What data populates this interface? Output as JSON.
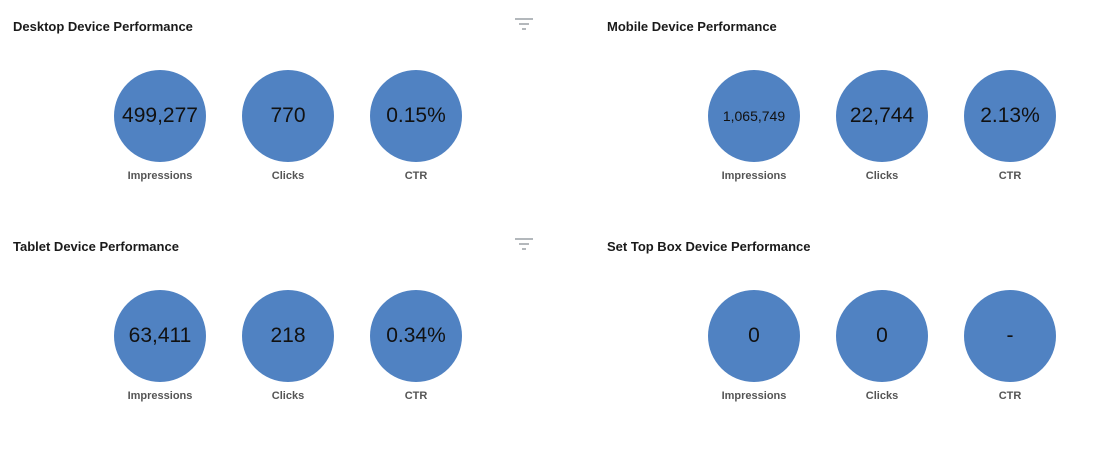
{
  "colors": {
    "bubble": "#5082c2",
    "title": "#1a1a1a",
    "label": "#555555",
    "icon": "#9aa0a6"
  },
  "icons": {
    "filter": "filter-icon"
  },
  "panels": {
    "desktop": {
      "title": "Desktop Device Performance",
      "impressions": {
        "value": "499,277",
        "label": "Impressions"
      },
      "clicks": {
        "value": "770",
        "label": "Clicks"
      },
      "ctr": {
        "value": "0.15%",
        "label": "CTR"
      }
    },
    "mobile": {
      "title": "Mobile Device Performance",
      "impressions": {
        "value": "1,065,749",
        "label": "Impressions"
      },
      "clicks": {
        "value": "22,744",
        "label": "Clicks"
      },
      "ctr": {
        "value": "2.13%",
        "label": "CTR"
      }
    },
    "tablet": {
      "title": "Tablet Device Performance",
      "impressions": {
        "value": "63,411",
        "label": "Impressions"
      },
      "clicks": {
        "value": "218",
        "label": "Clicks"
      },
      "ctr": {
        "value": "0.34%",
        "label": "CTR"
      }
    },
    "settopbox": {
      "title": "Set Top Box Device Performance",
      "impressions": {
        "value": "0",
        "label": "Impressions"
      },
      "clicks": {
        "value": "0",
        "label": "Clicks"
      },
      "ctr": {
        "value": "-",
        "label": "CTR"
      }
    }
  }
}
